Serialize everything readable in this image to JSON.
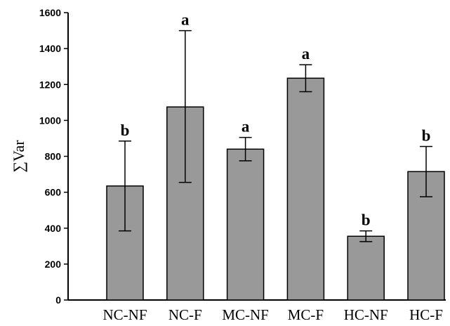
{
  "chart_data": {
    "type": "bar",
    "title": "",
    "xlabel": "",
    "ylabel": "∑Var",
    "ylim": [
      0,
      1600
    ],
    "yticks": [
      0,
      200,
      400,
      600,
      800,
      1000,
      1200,
      1400,
      1600
    ],
    "categories": [
      "NC-NF",
      "NC-F",
      "MC-NF",
      "MC-F",
      "HC-NF",
      "HC-F"
    ],
    "values": [
      635,
      1075,
      840,
      1235,
      355,
      715
    ],
    "error_low": [
      385,
      655,
      775,
      1160,
      325,
      575
    ],
    "error_high": [
      885,
      1500,
      905,
      1310,
      385,
      855
    ],
    "significance": [
      "b",
      "a",
      "a",
      "a",
      "b",
      "b"
    ],
    "bar_color": "#999999",
    "grid": false,
    "legend": "none"
  }
}
